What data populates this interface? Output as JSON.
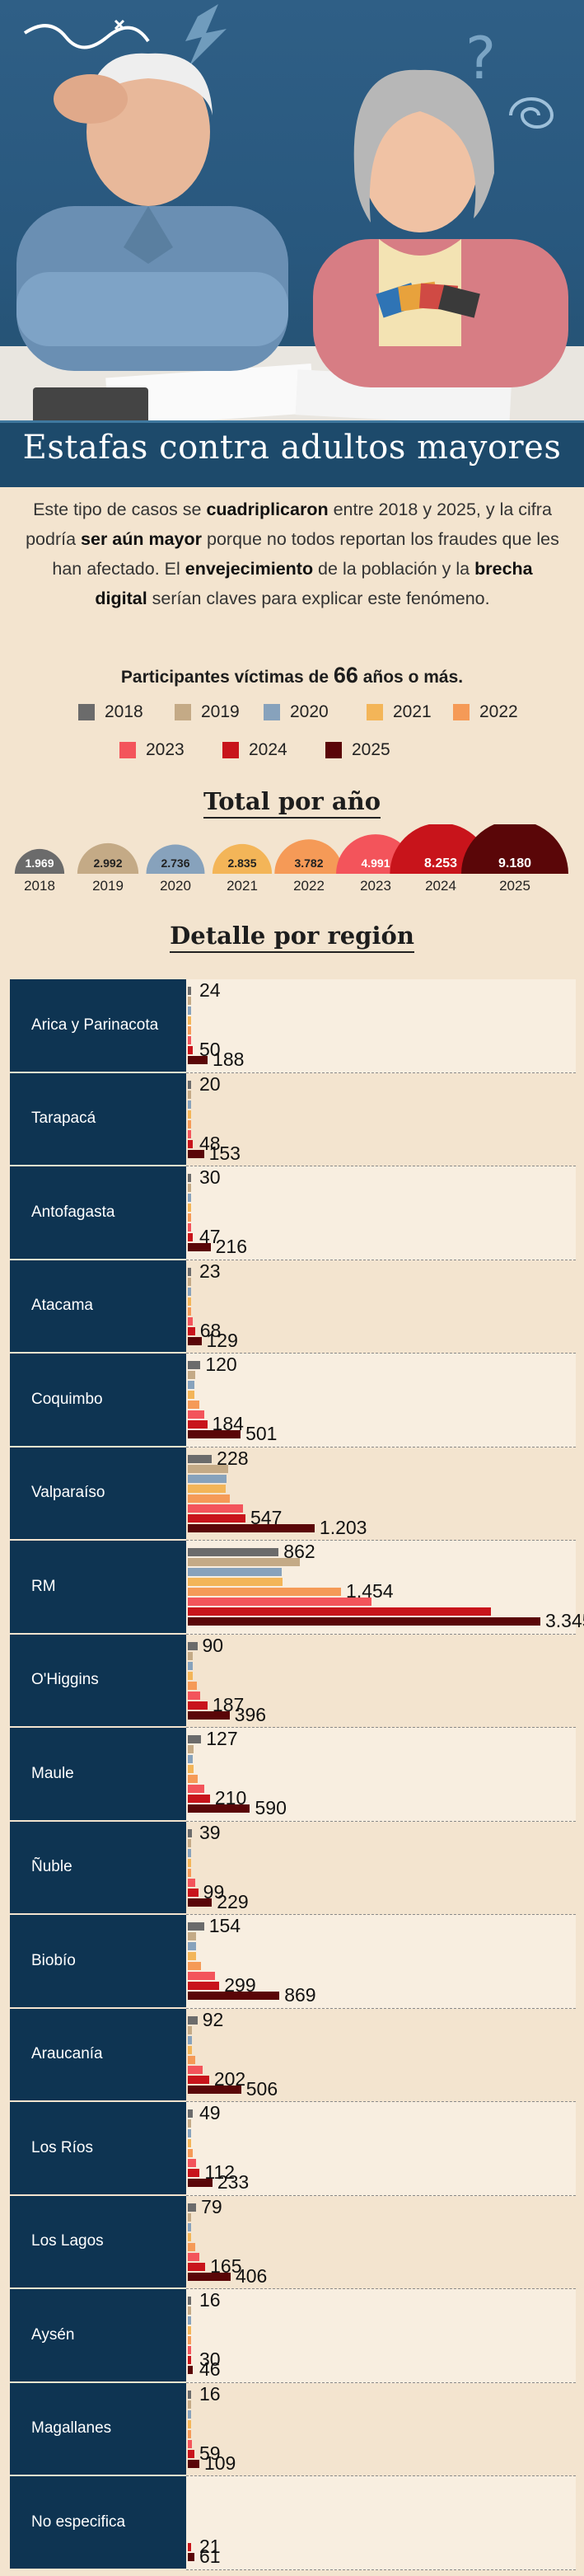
{
  "header": {
    "title": "Estafas contra adultos mayores"
  },
  "intro": {
    "t1": "Este tipo de casos se ",
    "b1": "cuadriplicaron",
    "t2": " entre 2018 y 2025, y la cifra podría ",
    "b2": "ser aún mayor",
    "t3": " porque no todos reportan los fraudes que les han afectado. El ",
    "b3": "envejecimiento",
    "t4": " de la población y la ",
    "b4": "brecha digital",
    "t5": " serían claves para explicar este fenómeno."
  },
  "legend_title": {
    "pre": "Participantes víctimas de ",
    "num": "66",
    "post": " años o más."
  },
  "colors": {
    "2018": "#6b6b6b",
    "2019": "#c4aa86",
    "2020": "#87a2bc",
    "2021": "#f3b558",
    "2022": "#f59a57",
    "2023": "#f3545b",
    "2024": "#c8141b",
    "2025": "#5a0608"
  },
  "totals_title": "Total por año",
  "region_title": "Detalle por región",
  "chart_data": [
    {
      "type": "bar",
      "title": "Total por año",
      "categories": [
        "2018",
        "2019",
        "2020",
        "2021",
        "2022",
        "2023",
        "2024",
        "2025"
      ],
      "values": [
        1969,
        2992,
        2736,
        2835,
        3782,
        4991,
        8253,
        9180
      ],
      "value_labels": [
        "1.969",
        "2.992",
        "2.736",
        "2.835",
        "3.782",
        "4.991",
        "8.253",
        "9.180"
      ]
    },
    {
      "type": "bar",
      "title": "Detalle por región",
      "years": [
        "2018",
        "2019",
        "2020",
        "2021",
        "2022",
        "2023",
        "2024",
        "2025"
      ],
      "regions": [
        {
          "name": "Arica y Parinacota",
          "values": [
            24,
            13,
            12,
            10,
            18,
            25,
            50,
            188
          ],
          "labels": {
            "2018": "24",
            "2024": "50",
            "2025": "188"
          }
        },
        {
          "name": "Tarapacá",
          "values": [
            20,
            15,
            14,
            12,
            16,
            22,
            48,
            153
          ],
          "labels": {
            "2018": "20",
            "2024": "48",
            "2025": "153"
          }
        },
        {
          "name": "Antofagasta",
          "values": [
            30,
            20,
            18,
            16,
            24,
            33,
            47,
            216
          ],
          "labels": {
            "2018": "30",
            "2024": "47",
            "2025": "216"
          }
        },
        {
          "name": "Atacama",
          "values": [
            23,
            16,
            15,
            14,
            28,
            44,
            68,
            129
          ],
          "labels": {
            "2018": "23",
            "2024": "68",
            "2025": "129"
          }
        },
        {
          "name": "Coquimbo",
          "values": [
            120,
            70,
            60,
            65,
            110,
            160,
            184,
            501
          ],
          "labels": {
            "2018": "120",
            "2024": "184",
            "2025": "501"
          }
        },
        {
          "name": "Valparaíso",
          "values": [
            228,
            380,
            370,
            360,
            395,
            520,
            547,
            1203
          ],
          "labels": {
            "2018": "228",
            "2024": "547",
            "2025": "1.203"
          }
        },
        {
          "name": "RM",
          "values": [
            862,
            1060,
            890,
            900,
            1454,
            1740,
            2875,
            3345
          ],
          "labels": {
            "2018": "862",
            "2022": "1.454",
            "2025": "3.345"
          }
        },
        {
          "name": "O'Higgins",
          "values": [
            90,
            50,
            45,
            48,
            85,
            120,
            187,
            396
          ],
          "labels": {
            "2018": "90",
            "2024": "187",
            "2025": "396"
          }
        },
        {
          "name": "Maule",
          "values": [
            127,
            55,
            50,
            52,
            90,
            160,
            210,
            590
          ],
          "labels": {
            "2018": "127",
            "2024": "210",
            "2025": "590"
          }
        },
        {
          "name": "Ñuble",
          "values": [
            39,
            20,
            18,
            17,
            33,
            70,
            99,
            229
          ],
          "labels": {
            "2018": "39",
            "2024": "99",
            "2025": "229"
          }
        },
        {
          "name": "Biobío",
          "values": [
            154,
            80,
            75,
            80,
            125,
            260,
            299,
            869
          ],
          "labels": {
            "2018": "154",
            "2024": "299",
            "2025": "869"
          }
        },
        {
          "name": "Araucanía",
          "values": [
            92,
            40,
            38,
            42,
            70,
            140,
            202,
            506
          ],
          "labels": {
            "2018": "92",
            "2024": "202",
            "2025": "506"
          }
        },
        {
          "name": "Los Ríos",
          "values": [
            49,
            20,
            18,
            19,
            45,
            80,
            112,
            233
          ],
          "labels": {
            "2018": "49",
            "2024": "112",
            "2025": "233"
          }
        },
        {
          "name": "Los Lagos",
          "values": [
            79,
            30,
            28,
            30,
            70,
            110,
            165,
            406
          ],
          "labels": {
            "2018": "79",
            "2024": "165",
            "2025": "406"
          }
        },
        {
          "name": "Aysén",
          "values": [
            16,
            8,
            7,
            6,
            10,
            18,
            30,
            46
          ],
          "labels": {
            "2018": "16",
            "2024": "30",
            "2025": "46"
          }
        },
        {
          "name": "Magallanes",
          "values": [
            16,
            10,
            9,
            8,
            22,
            38,
            59,
            109
          ],
          "labels": {
            "2018": "16",
            "2024": "59",
            "2025": "109"
          }
        },
        {
          "name": "No especifica",
          "values": [
            0,
            0,
            0,
            0,
            0,
            0,
            21,
            61
          ],
          "labels": {
            "2024": "21",
            "2025": "61"
          }
        }
      ]
    }
  ]
}
